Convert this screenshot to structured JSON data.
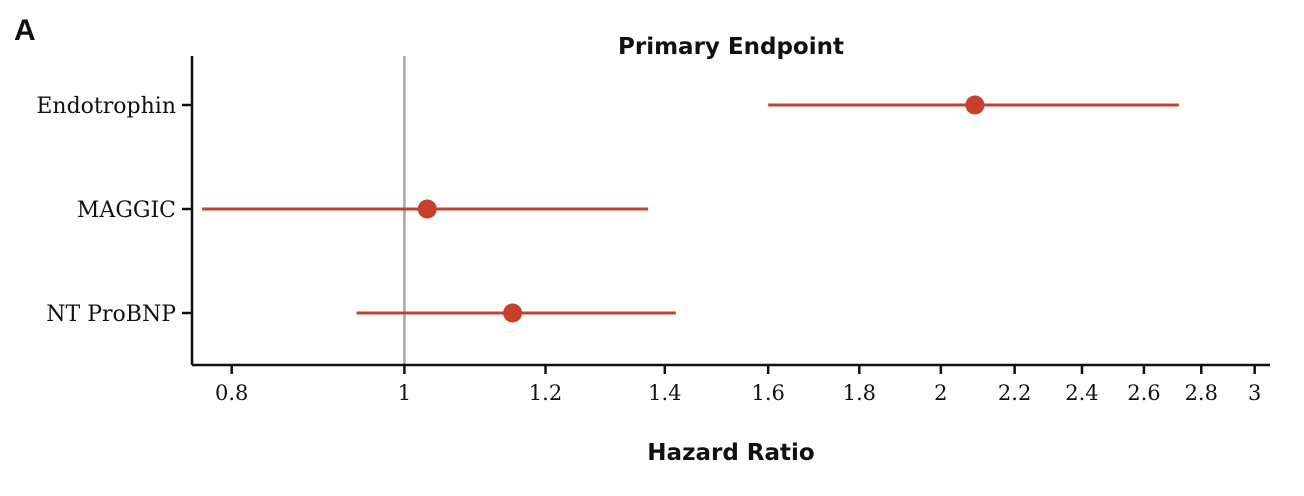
{
  "panel_label": "A",
  "chart_data": {
    "type": "forest",
    "title": "Primary Endpoint",
    "xlabel": "Hazard Ratio",
    "ylabel": "",
    "x_scale": "log",
    "xlim": [
      0.76,
      3.06
    ],
    "reference_line": 1,
    "x_ticks": [
      {
        "value": 0.8,
        "label": "0.8"
      },
      {
        "value": 1,
        "label": "1"
      },
      {
        "value": 1.2,
        "label": "1.2"
      },
      {
        "value": 1.4,
        "label": "1.4"
      },
      {
        "value": 1.6,
        "label": "1.6"
      },
      {
        "value": 1.8,
        "label": "1.8"
      },
      {
        "value": 2,
        "label": "2"
      },
      {
        "value": 2.2,
        "label": "2.2"
      },
      {
        "value": 2.4,
        "label": "2.4"
      },
      {
        "value": 2.6,
        "label": "2.6"
      },
      {
        "value": 2.8,
        "label": "2.8"
      },
      {
        "value": 3,
        "label": "3"
      }
    ],
    "rows": [
      {
        "label": "Endotrophin",
        "hr": 2.09,
        "lower": 1.6,
        "upper": 2.72
      },
      {
        "label": "MAGGIC",
        "hr": 1.03,
        "lower": 0.77,
        "upper": 1.37
      },
      {
        "label": "NT ProBNP",
        "hr": 1.15,
        "lower": 0.94,
        "upper": 1.42
      }
    ],
    "colors": {
      "point": "#c8402b",
      "ci": "#c8402b",
      "reference_line": "#a6a6a6",
      "axis": "#111111"
    }
  }
}
